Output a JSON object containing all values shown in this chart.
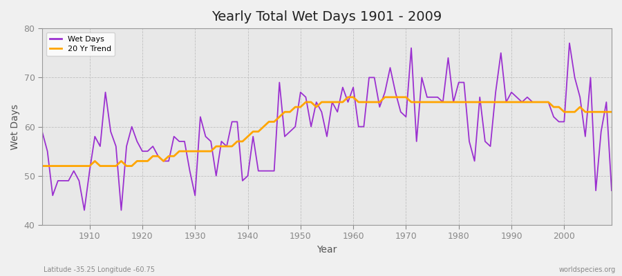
{
  "title": "Yearly Total Wet Days 1901 - 2009",
  "xlabel": "Year",
  "ylabel": "Wet Days",
  "subtitle": "Latitude -35.25 Longitude -60.75",
  "watermark": "worldspecies.org",
  "ylim": [
    40,
    80
  ],
  "xlim": [
    1901,
    2009
  ],
  "yticks": [
    40,
    50,
    60,
    70,
    80
  ],
  "xticks": [
    1910,
    1920,
    1930,
    1940,
    1950,
    1960,
    1970,
    1980,
    1990,
    2000
  ],
  "wet_days_color": "#9B30D0",
  "trend_color": "#FFA500",
  "background_color": "#F0F0F0",
  "plot_bg_color": "#E8E8E8",
  "wet_days": {
    "1901": 59,
    "1902": 55,
    "1903": 46,
    "1904": 49,
    "1905": 49,
    "1906": 49,
    "1907": 51,
    "1908": 49,
    "1909": 43,
    "1910": 51,
    "1911": 58,
    "1912": 56,
    "1913": 67,
    "1914": 59,
    "1915": 56,
    "1916": 43,
    "1917": 56,
    "1918": 60,
    "1919": 57,
    "1920": 55,
    "1921": 55,
    "1922": 56,
    "1923": 54,
    "1924": 53,
    "1925": 53,
    "1926": 58,
    "1927": 57,
    "1928": 57,
    "1929": 51,
    "1930": 46,
    "1931": 62,
    "1932": 58,
    "1933": 57,
    "1934": 50,
    "1935": 57,
    "1936": 56,
    "1937": 61,
    "1938": 61,
    "1939": 49,
    "1940": 50,
    "1941": 58,
    "1942": 51,
    "1943": 51,
    "1944": 51,
    "1945": 51,
    "1946": 69,
    "1947": 58,
    "1948": 59,
    "1949": 60,
    "1950": 67,
    "1951": 66,
    "1952": 60,
    "1953": 65,
    "1954": 63,
    "1955": 58,
    "1956": 65,
    "1957": 63,
    "1958": 68,
    "1959": 65,
    "1960": 68,
    "1961": 60,
    "1962": 60,
    "1963": 70,
    "1964": 70,
    "1965": 64,
    "1966": 67,
    "1967": 72,
    "1968": 67,
    "1969": 63,
    "1970": 62,
    "1971": 76,
    "1972": 57,
    "1973": 70,
    "1974": 66,
    "1975": 66,
    "1976": 66,
    "1977": 65,
    "1978": 74,
    "1979": 65,
    "1980": 69,
    "1981": 69,
    "1982": 57,
    "1983": 53,
    "1984": 66,
    "1985": 57,
    "1986": 56,
    "1987": 67,
    "1988": 75,
    "1989": 65,
    "1990": 67,
    "1991": 66,
    "1992": 65,
    "1993": 66,
    "1994": 65,
    "1995": 65,
    "1996": 65,
    "1997": 65,
    "1998": 62,
    "1999": 61,
    "2000": 61,
    "2001": 77,
    "2002": 70,
    "2003": 66,
    "2004": 58,
    "2005": 70,
    "2006": 47,
    "2007": 59,
    "2008": 65,
    "2009": 47
  },
  "trend_20yr": {
    "1901": 52,
    "1902": 52,
    "1903": 52,
    "1904": 52,
    "1905": 52,
    "1906": 52,
    "1907": 52,
    "1908": 52,
    "1909": 52,
    "1910": 52,
    "1911": 53,
    "1912": 52,
    "1913": 52,
    "1914": 52,
    "1915": 52,
    "1916": 53,
    "1917": 52,
    "1918": 52,
    "1919": 53,
    "1920": 53,
    "1921": 53,
    "1922": 54,
    "1923": 54,
    "1924": 53,
    "1925": 54,
    "1926": 54,
    "1927": 55,
    "1928": 55,
    "1929": 55,
    "1930": 55,
    "1931": 55,
    "1932": 55,
    "1933": 55,
    "1934": 56,
    "1935": 56,
    "1936": 56,
    "1937": 56,
    "1938": 57,
    "1939": 57,
    "1940": 58,
    "1941": 59,
    "1942": 59,
    "1943": 60,
    "1944": 61,
    "1945": 61,
    "1946": 62,
    "1947": 63,
    "1948": 63,
    "1949": 64,
    "1950": 64,
    "1951": 65,
    "1952": 65,
    "1953": 64,
    "1954": 65,
    "1955": 65,
    "1956": 65,
    "1957": 65,
    "1958": 65,
    "1959": 66,
    "1960": 66,
    "1961": 65,
    "1962": 65,
    "1963": 65,
    "1964": 65,
    "1965": 65,
    "1966": 66,
    "1967": 66,
    "1968": 66,
    "1969": 66,
    "1970": 66,
    "1971": 65,
    "1972": 65,
    "1973": 65,
    "1974": 65,
    "1975": 65,
    "1976": 65,
    "1977": 65,
    "1978": 65,
    "1979": 65,
    "1980": 65,
    "1981": 65,
    "1982": 65,
    "1983": 65,
    "1984": 65,
    "1985": 65,
    "1986": 65,
    "1987": 65,
    "1988": 65,
    "1989": 65,
    "1990": 65,
    "1991": 65,
    "1992": 65,
    "1993": 65,
    "1994": 65,
    "1995": 65,
    "1996": 65,
    "1997": 65,
    "1998": 64,
    "1999": 64,
    "2000": 63,
    "2001": 63,
    "2002": 63,
    "2003": 64,
    "2004": 63,
    "2005": 63,
    "2006": 63,
    "2007": 63,
    "2008": 63,
    "2009": 63
  }
}
